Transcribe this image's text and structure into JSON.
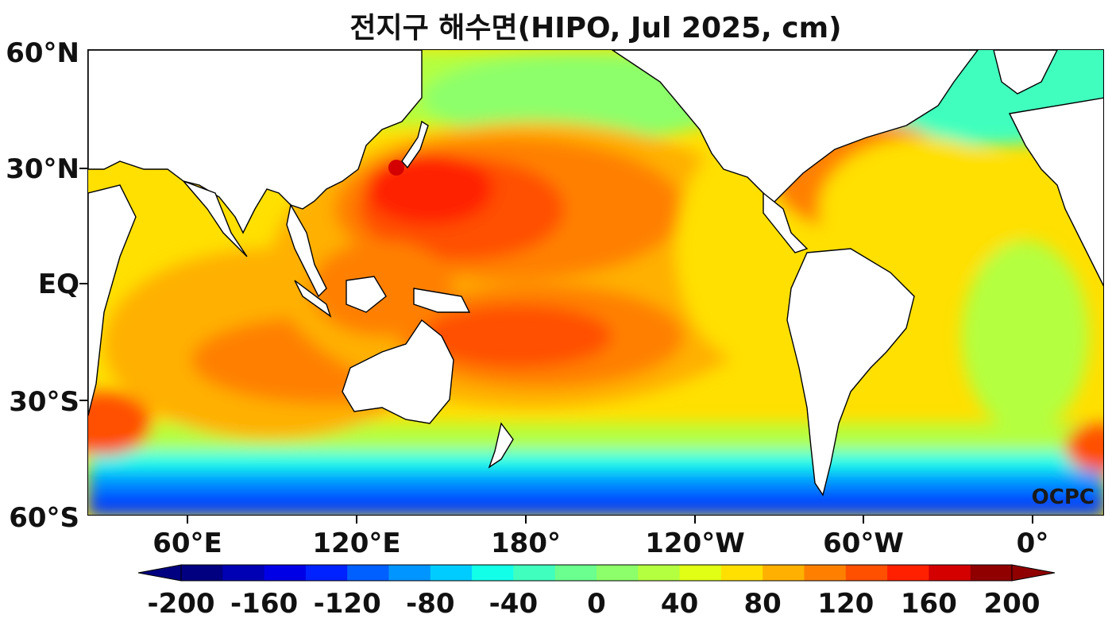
{
  "title": "전지구 해수면(HIPO, Jul 2025, cm)",
  "watermark": "OCPC",
  "axes": {
    "y_labels": [
      "60°N",
      "30°N",
      "EQ",
      "30°S",
      "60°S"
    ],
    "x_labels": [
      "60°E",
      "120°E",
      "180°",
      "120°W",
      "60°W",
      "0°"
    ]
  },
  "colorbar": {
    "labels": [
      "-200",
      "-160",
      "-120",
      "-80",
      "-40",
      "0",
      "40",
      "80",
      "120",
      "160",
      "200"
    ],
    "colors": [
      "#000080",
      "#0000b4",
      "#0000e6",
      "#0022ff",
      "#0060ff",
      "#0095ff",
      "#00ccff",
      "#12ffe8",
      "#40ffbe",
      "#6aff8e",
      "#8cff6a",
      "#b4ff40",
      "#e0ff14",
      "#ffe000",
      "#ffb000",
      "#ff8000",
      "#ff5000",
      "#ff2000",
      "#d40000",
      "#900000"
    ]
  },
  "map": {
    "field": "Global sea level anomaly",
    "ocean_fill_colors": {
      "southern_band": "#0044ff",
      "subpolar": "#40ffbe",
      "mid_ocean": "#ffe000",
      "warm_pool": "#ff8000",
      "kuroshio_max": "#ff2000"
    },
    "land_color": "#ffffff"
  }
}
